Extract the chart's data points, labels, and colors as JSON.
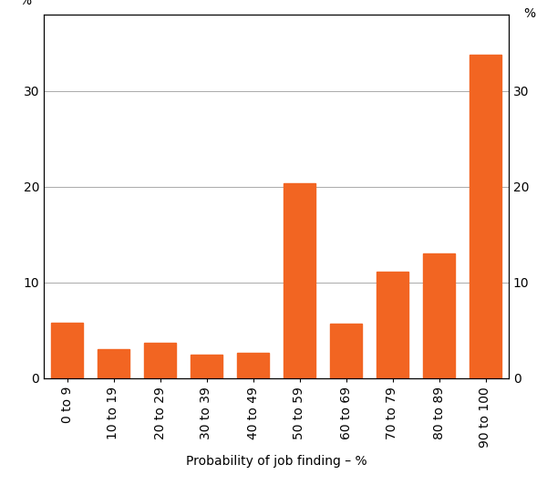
{
  "categories": [
    "0 to 9",
    "10 to 19",
    "20 to 29",
    "30 to 39",
    "40 to 49",
    "50 to 59",
    "60 to 69",
    "70 to 79",
    "80 to 89",
    "90 to 100"
  ],
  "values": [
    5.8,
    3.0,
    3.7,
    2.5,
    2.7,
    20.4,
    5.7,
    11.1,
    13.0,
    33.8
  ],
  "bar_color": "#F26522",
  "xlabel": "Probability of job finding – %",
  "ylabel_left": "%",
  "ylabel_right": "%",
  "ylim": [
    0,
    38
  ],
  "yticks": [
    0,
    10,
    20,
    30
  ],
  "grid_color": "#AAAAAA",
  "background_color": "#FFFFFF",
  "xlabel_fontsize": 10,
  "ylabel_fontsize": 10,
  "tick_fontsize": 10,
  "bar_width": 0.7
}
